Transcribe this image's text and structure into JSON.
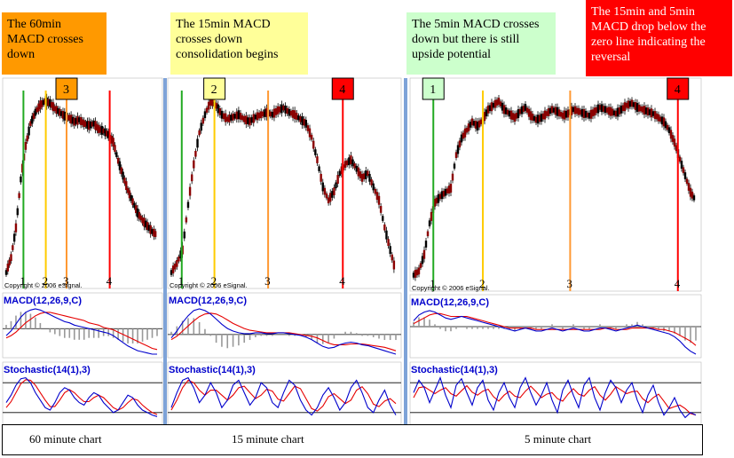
{
  "annotations": [
    {
      "id": "a60",
      "text": "The 60min MACD crosses down",
      "bg": "#ff9900",
      "color": "#000000"
    },
    {
      "id": "a15",
      "text": "The 15min MACD crosses down consolidation begins",
      "bg": "#ffff99",
      "color": "#000000"
    },
    {
      "id": "a5",
      "text": "The 5min MACD crosses down but there is still upside potential",
      "bg": "#ccffcc",
      "color": "#000000"
    },
    {
      "id": "a155",
      "text": "The 15min and 5min MACD drop below the zero line indicating the reversal",
      "bg": "#ff0000",
      "color": "#ffffff"
    }
  ],
  "footer": {
    "labels": [
      "60 minute chart",
      "15 minute chart",
      "5 minute chart"
    ]
  },
  "chart_data": [
    {
      "type": "line",
      "timeframe": "60 minute chart",
      "copyright": "Copyright © 2006 eSignal.",
      "price": [
        20,
        28,
        44,
        70,
        88,
        100,
        106,
        110,
        112,
        111,
        108,
        106,
        104,
        103,
        101,
        102,
        100,
        99,
        100,
        97,
        96,
        94,
        90,
        80,
        72,
        64,
        58,
        52,
        48,
        45,
        42,
        40
      ],
      "markers": [
        {
          "label": "1",
          "color": "#22aa22",
          "at": 0.13,
          "box": false
        },
        {
          "label": "2",
          "color": "#ffcc00",
          "at": 0.27,
          "box": false
        },
        {
          "label": "3",
          "color": "#ff9933",
          "at": 0.4,
          "box": true,
          "box_bg": "#ff9900"
        },
        {
          "label": "4",
          "color": "#ff0000",
          "at": 0.67,
          "box": false
        }
      ],
      "macd_label": "MACD(12,26,9,C)",
      "macd": [
        -6,
        -2,
        4,
        10,
        14,
        16,
        17,
        16,
        14,
        12,
        10,
        8,
        6,
        5,
        3,
        2,
        1,
        0,
        -1,
        -2,
        -3,
        -4,
        -6,
        -9,
        -12,
        -15,
        -17,
        -19,
        -20,
        -21,
        -22,
        -22
      ],
      "signal": [
        -8,
        -6,
        -3,
        1,
        5,
        8,
        11,
        13,
        14,
        14,
        13,
        12,
        11,
        10,
        9,
        8,
        7,
        5,
        4,
        3,
        1,
        0,
        -1,
        -3,
        -5,
        -7,
        -9,
        -11,
        -13,
        -15,
        -17,
        -18
      ],
      "stoch_label": "Stochastic(14(1),3)",
      "stoch_k": [
        40,
        55,
        75,
        88,
        90,
        80,
        60,
        45,
        30,
        25,
        40,
        60,
        70,
        65,
        50,
        40,
        35,
        50,
        60,
        55,
        40,
        30,
        20,
        25,
        40,
        55,
        50,
        35,
        25,
        20,
        15,
        12
      ],
      "stoch_d": [
        30,
        42,
        60,
        78,
        86,
        85,
        75,
        60,
        45,
        32,
        32,
        45,
        60,
        66,
        60,
        50,
        42,
        42,
        50,
        55,
        50,
        40,
        30,
        25,
        30,
        40,
        48,
        45,
        35,
        27,
        20,
        16
      ]
    },
    {
      "type": "line",
      "timeframe": "15 minute chart",
      "copyright": "Copyright © 2006 eSignal.",
      "price": [
        30,
        34,
        40,
        60,
        78,
        92,
        100,
        106,
        104,
        100,
        98,
        99,
        100,
        98,
        97,
        99,
        100,
        101,
        100,
        102,
        103,
        101,
        100,
        98,
        96,
        90,
        80,
        68,
        62,
        66,
        74,
        78,
        80,
        76,
        72,
        74,
        68,
        62,
        50,
        40,
        30
      ],
      "markers": [
        {
          "label": "1",
          "color": "#22aa22",
          "at": 0.06,
          "box": false
        },
        {
          "label": "2",
          "color": "#ffcc00",
          "at": 0.2,
          "box": true,
          "box_bg": "#ffff99"
        },
        {
          "label": "3",
          "color": "#ff9933",
          "at": 0.43,
          "box": false
        },
        {
          "label": "4",
          "color": "#ff0000",
          "at": 0.75,
          "box": true,
          "box_bg": "#ff0000"
        }
      ],
      "macd_label": "MACD(12,26,9,C)",
      "macd": [
        -4,
        4,
        14,
        22,
        28,
        30,
        28,
        24,
        18,
        12,
        7,
        4,
        2,
        1,
        1,
        2,
        2,
        1,
        1,
        2,
        2,
        1,
        0,
        -1,
        -3,
        -6,
        -10,
        -14,
        -16,
        -15,
        -12,
        -10,
        -9,
        -10,
        -12,
        -13,
        -15,
        -17,
        -19,
        -21,
        -23
      ],
      "signal": [
        -6,
        -2,
        4,
        10,
        16,
        21,
        24,
        25,
        24,
        21,
        17,
        13,
        10,
        7,
        5,
        4,
        3,
        2,
        2,
        2,
        2,
        2,
        1,
        0,
        -1,
        -2,
        -4,
        -7,
        -10,
        -12,
        -12,
        -12,
        -11,
        -11,
        -11,
        -12,
        -13,
        -14,
        -15,
        -17,
        -19
      ],
      "stoch_label": "Stochastic(14(1),3)",
      "stoch_k": [
        30,
        60,
        85,
        90,
        70,
        40,
        55,
        80,
        60,
        30,
        45,
        75,
        85,
        60,
        35,
        50,
        80,
        70,
        40,
        30,
        60,
        85,
        75,
        45,
        25,
        15,
        30,
        55,
        70,
        50,
        25,
        40,
        70,
        85,
        60,
        30,
        20,
        45,
        65,
        35,
        15
      ],
      "stoch_d": [
        25,
        45,
        70,
        85,
        80,
        65,
        55,
        65,
        65,
        55,
        45,
        55,
        70,
        73,
        60,
        48,
        55,
        67,
        63,
        47,
        43,
        58,
        73,
        68,
        48,
        28,
        23,
        33,
        52,
        58,
        48,
        38,
        45,
        65,
        72,
        58,
        37,
        32,
        43,
        48,
        38
      ]
    },
    {
      "type": "line",
      "timeframe": "5 minute chart",
      "copyright": "Copyright © 2006 eSignal.",
      "price": [
        20,
        22,
        30,
        45,
        55,
        58,
        60,
        62,
        78,
        86,
        90,
        94,
        92,
        95,
        100,
        102,
        104,
        100,
        98,
        96,
        99,
        101,
        97,
        95,
        96,
        98,
        100,
        99,
        97,
        98,
        100,
        99,
        98,
        97,
        99,
        101,
        100,
        99,
        98,
        100,
        102,
        103,
        101,
        100,
        99,
        98,
        96,
        94,
        90,
        84,
        76,
        68,
        60,
        56
      ],
      "markers": [
        {
          "label": "1",
          "color": "#22aa22",
          "at": 0.08,
          "box": true,
          "box_bg": "#ccffcc"
        },
        {
          "label": "2",
          "color": "#ffcc00",
          "at": 0.25,
          "box": false
        },
        {
          "label": "3",
          "color": "#ff9933",
          "at": 0.55,
          "box": false
        },
        {
          "label": "4",
          "color": "#ff0000",
          "at": 0.92,
          "box": true,
          "box_bg": "#ff0000"
        }
      ],
      "macd_label": "MACD(12,26,9,C)",
      "macd": [
        4,
        8,
        10,
        11,
        10,
        8,
        6,
        5,
        6,
        7,
        6,
        5,
        4,
        3,
        2,
        1,
        0,
        -1,
        -2,
        -3,
        -2,
        -1,
        -2,
        -3,
        -3,
        -2,
        -1,
        -2,
        -3,
        -2,
        -1,
        -2,
        -3,
        -3,
        -2,
        -1,
        -1,
        -2,
        -3,
        -2,
        -1,
        0,
        1,
        0,
        -1,
        -2,
        -3,
        -4,
        -5,
        -7,
        -10,
        -14,
        -17,
        -19
      ],
      "signal": [
        2,
        4,
        6,
        8,
        9,
        9,
        8,
        7,
        7,
        7,
        7,
        6,
        5,
        4,
        3,
        2,
        1,
        0,
        -1,
        -1,
        -1,
        -1,
        -1,
        -2,
        -2,
        -2,
        -2,
        -2,
        -2,
        -2,
        -2,
        -2,
        -2,
        -2,
        -2,
        -2,
        -1,
        -1,
        -2,
        -2,
        -2,
        -1,
        -1,
        -1,
        -1,
        -1,
        -2,
        -2,
        -3,
        -4,
        -6,
        -8,
        -10,
        -13
      ],
      "stoch_label": "Stochastic(14(1),3)",
      "stoch_k": [
        60,
        85,
        70,
        40,
        65,
        90,
        55,
        30,
        75,
        88,
        60,
        35,
        70,
        85,
        45,
        25,
        60,
        80,
        50,
        30,
        70,
        90,
        60,
        35,
        55,
        80,
        45,
        20,
        65,
        85,
        55,
        30,
        75,
        90,
        50,
        25,
        60,
        85,
        70,
        40,
        65,
        80,
        45,
        20,
        55,
        75,
        40,
        15,
        30,
        50,
        25,
        10,
        20,
        15
      ],
      "stoch_d": [
        50,
        70,
        72,
        65,
        58,
        65,
        70,
        58,
        53,
        64,
        74,
        61,
        55,
        63,
        67,
        52,
        43,
        55,
        63,
        53,
        50,
        63,
        73,
        62,
        50,
        57,
        60,
        48,
        43,
        57,
        68,
        57,
        53,
        65,
        72,
        55,
        45,
        57,
        72,
        65,
        58,
        62,
        63,
        48,
        40,
        50,
        57,
        43,
        28,
        32,
        35,
        28,
        18,
        15
      ]
    }
  ]
}
